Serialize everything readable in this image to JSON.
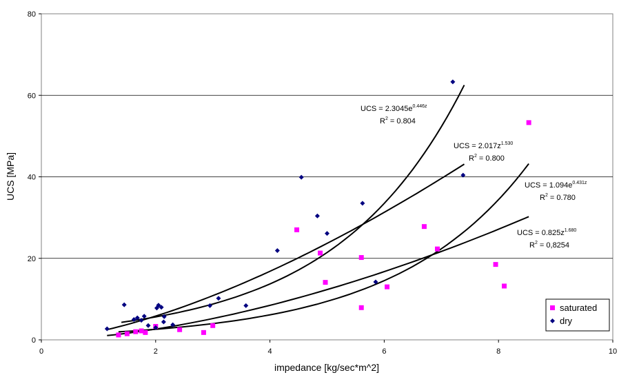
{
  "chart_data": {
    "type": "scatter",
    "xlabel": "impedance [kg/sec*m^2]",
    "ylabel": "UCS [MPa]",
    "xlim": [
      0,
      10
    ],
    "ylim": [
      0,
      80
    ],
    "xticks": [
      0,
      2,
      4,
      6,
      8,
      10
    ],
    "yticks": [
      0,
      20,
      40,
      60,
      80
    ],
    "grid": "horizontal",
    "legend_position": "bottom-right",
    "series": [
      {
        "name": "saturated",
        "marker": "square",
        "color": "#ff00ff",
        "points": [
          [
            1.35,
            1.2
          ],
          [
            1.5,
            1.5
          ],
          [
            1.65,
            2.0
          ],
          [
            1.75,
            2.2
          ],
          [
            1.82,
            1.8
          ],
          [
            2.0,
            3.3
          ],
          [
            2.42,
            2.5
          ],
          [
            2.84,
            1.8
          ],
          [
            3.0,
            3.5
          ],
          [
            4.47,
            27.0
          ],
          [
            4.88,
            21.3
          ],
          [
            4.97,
            14.1
          ],
          [
            5.6,
            7.9
          ],
          [
            5.6,
            20.2
          ],
          [
            6.05,
            13.0
          ],
          [
            6.7,
            27.8
          ],
          [
            6.93,
            22.3
          ],
          [
            7.95,
            18.5
          ],
          [
            8.1,
            13.2
          ],
          [
            8.53,
            53.3
          ]
        ]
      },
      {
        "name": "dry",
        "marker": "diamond",
        "color": "#000080",
        "points": [
          [
            1.15,
            2.7
          ],
          [
            1.45,
            8.6
          ],
          [
            1.62,
            5.0
          ],
          [
            1.68,
            5.4
          ],
          [
            1.75,
            4.8
          ],
          [
            1.8,
            5.8
          ],
          [
            1.87,
            3.5
          ],
          [
            2.0,
            3.0
          ],
          [
            2.02,
            7.8
          ],
          [
            2.05,
            8.5
          ],
          [
            2.1,
            8.0
          ],
          [
            2.14,
            4.4
          ],
          [
            2.15,
            5.7
          ],
          [
            2.3,
            3.7
          ],
          [
            2.95,
            8.4
          ],
          [
            3.1,
            10.2
          ],
          [
            3.58,
            8.4
          ],
          [
            4.13,
            21.9
          ],
          [
            4.55,
            39.9
          ],
          [
            4.83,
            30.4
          ],
          [
            5.0,
            26.1
          ],
          [
            5.62,
            33.5
          ],
          [
            5.85,
            14.2
          ],
          [
            7.2,
            63.3
          ],
          [
            7.38,
            40.4
          ]
        ]
      }
    ],
    "fits": [
      {
        "kind": "exp",
        "a": 2.3045,
        "b": 0.446,
        "x_range": [
          1.4,
          7.4
        ]
      },
      {
        "kind": "power",
        "a": 2.017,
        "b": 1.53,
        "x_range": [
          1.15,
          7.4
        ]
      },
      {
        "kind": "exp",
        "a": 1.094,
        "b": 0.431,
        "x_range": [
          1.35,
          8.53
        ]
      },
      {
        "kind": "power",
        "a": 0.825,
        "b": 1.68,
        "x_range": [
          1.15,
          8.53
        ]
      }
    ],
    "annotations": [
      {
        "line1_prefix": "UCS = 2.3045e",
        "line1_sup": "0.446z",
        "line2_prefix": "R",
        "line2_sup": "2",
        "line2_suffix": " = 0.804"
      },
      {
        "line1_prefix": "UCS = 2.017z",
        "line1_sup": "1.530",
        "line2_prefix": "R",
        "line2_sup": "2",
        "line2_suffix": " = 0.800"
      },
      {
        "line1_prefix": "UCS = 1.094e",
        "line1_sup": "0.431z",
        "line2_prefix": "R",
        "line2_sup": "2",
        "line2_suffix": " = 0.780"
      },
      {
        "line1_prefix": "UCS = 0.825z",
        "line1_sup": "1.680",
        "line2_prefix": "R",
        "line2_sup": "2",
        "line2_suffix": " = 0,8254"
      }
    ]
  }
}
